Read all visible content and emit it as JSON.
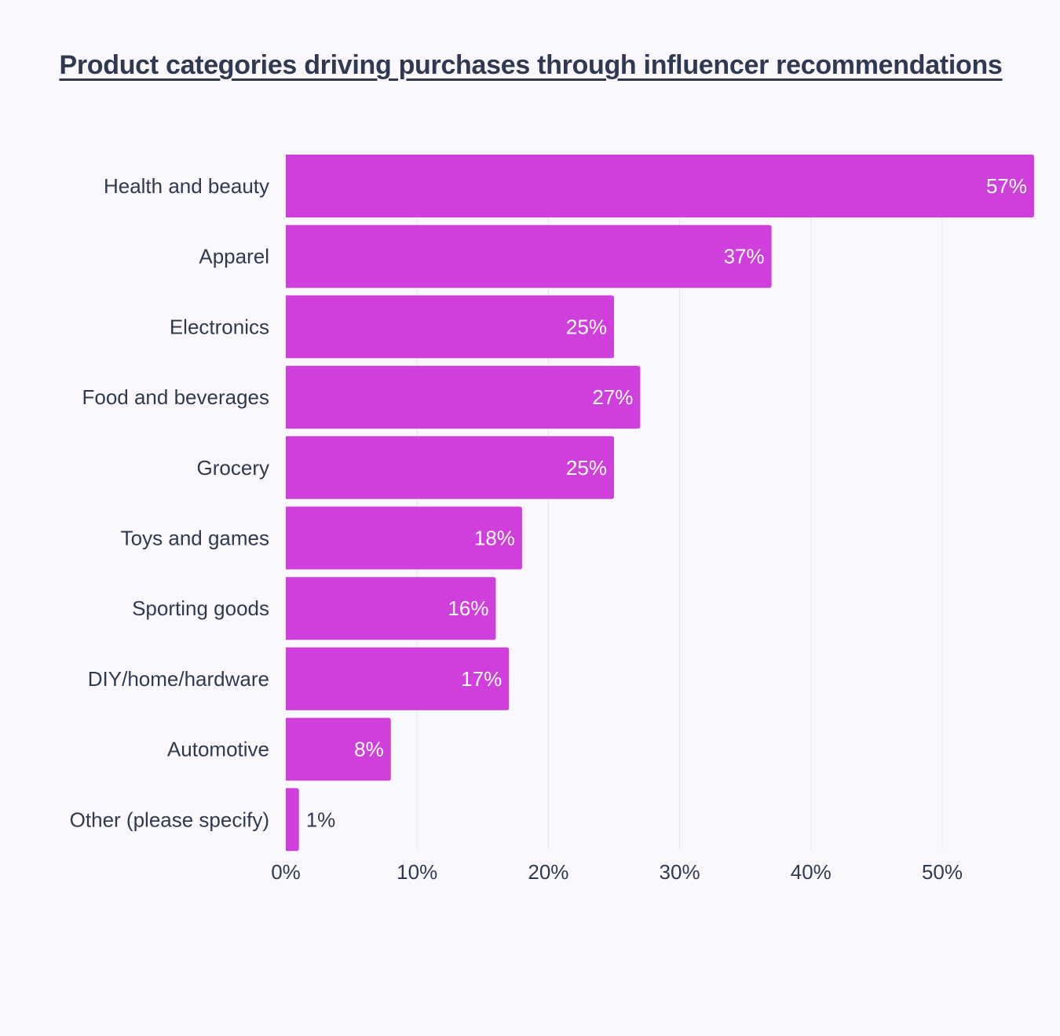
{
  "chart_data": {
    "type": "bar",
    "orientation": "horizontal",
    "title": "Product categories driving purchases through influencer recommendations",
    "categories": [
      "Health and beauty",
      "Apparel",
      "Electronics",
      "Food and beverages",
      "Grocery",
      "Toys and games",
      "Sporting goods",
      "DIY/home/hardware",
      "Automotive",
      "Other (please specify)"
    ],
    "values": [
      57,
      37,
      25,
      27,
      25,
      18,
      16,
      17,
      8,
      1
    ],
    "value_labels": [
      "57%",
      "37%",
      "25%",
      "27%",
      "25%",
      "18%",
      "16%",
      "17%",
      "8%",
      "1%"
    ],
    "xlim": [
      0,
      57
    ],
    "x_ticks": [
      0,
      10,
      20,
      30,
      40,
      50
    ],
    "x_tick_labels": [
      "0%",
      "10%",
      "20%",
      "30%",
      "40%",
      "50%"
    ],
    "grid": true,
    "legend": "none",
    "colors": {
      "bar": "#cf3fdc",
      "grid": "#e6e3ea",
      "text": "#2f3a52",
      "value_label_inside": "#ffffff",
      "background": "#fbf8fd"
    }
  }
}
